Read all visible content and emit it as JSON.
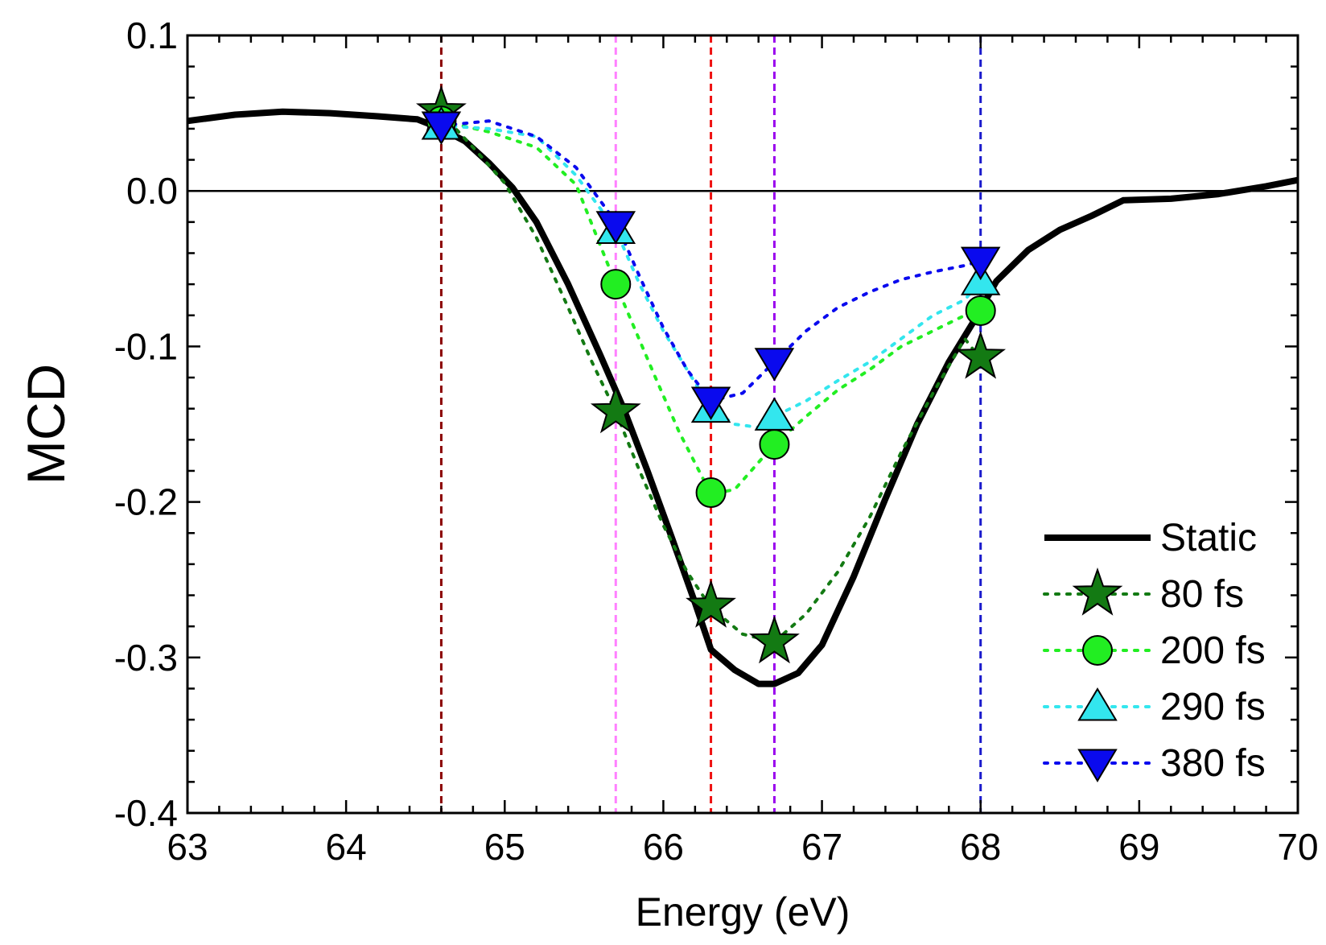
{
  "chart_data": {
    "type": "line",
    "title": "",
    "xlabel": "Energy (eV)",
    "ylabel": "MCD",
    "xlim": [
      63,
      70
    ],
    "ylim": [
      -0.4,
      0.1
    ],
    "xticks": [
      63,
      64,
      65,
      66,
      67,
      68,
      69,
      70
    ],
    "xtick_labels": [
      "63",
      "64",
      "65",
      "66",
      "67",
      "68",
      "69",
      "70"
    ],
    "yticks": [
      -0.4,
      -0.3,
      -0.2,
      -0.1,
      0.0,
      0.1
    ],
    "ytick_labels": [
      "-0.4",
      "-0.3",
      "-0.2",
      "-0.1",
      "0.0",
      "0.1"
    ],
    "grid": false,
    "zero_line": 0.0,
    "legend_position": "bottom-right",
    "vertical_markers": [
      {
        "x": 64.6,
        "color": "#8b0000"
      },
      {
        "x": 65.7,
        "color": "#ff80ff"
      },
      {
        "x": 66.3,
        "color": "#ee1111"
      },
      {
        "x": 66.7,
        "color": "#9900ee"
      },
      {
        "x": 68.0,
        "color": "#1a1acc"
      }
    ],
    "series": [
      {
        "name": "Static",
        "style": "solid",
        "color": "#000000",
        "x": [
          63.0,
          63.3,
          63.6,
          63.9,
          64.2,
          64.45,
          64.6,
          64.75,
          64.9,
          65.05,
          65.2,
          65.4,
          65.6,
          65.75,
          65.9,
          66.05,
          66.2,
          66.3,
          66.45,
          66.6,
          66.7,
          66.85,
          67.0,
          67.2,
          67.4,
          67.6,
          67.8,
          67.95,
          68.1,
          68.3,
          68.5,
          68.7,
          68.9,
          69.2,
          69.5,
          69.8,
          70.0
        ],
        "y": [
          0.045,
          0.049,
          0.051,
          0.05,
          0.048,
          0.046,
          0.04,
          0.032,
          0.018,
          0.002,
          -0.02,
          -0.06,
          -0.105,
          -0.14,
          -0.18,
          -0.222,
          -0.265,
          -0.295,
          -0.308,
          -0.317,
          -0.317,
          -0.31,
          -0.292,
          -0.248,
          -0.198,
          -0.15,
          -0.11,
          -0.085,
          -0.058,
          -0.038,
          -0.025,
          -0.016,
          -0.006,
          -0.005,
          -0.002,
          0.003,
          0.007
        ]
      },
      {
        "name": "80 fs",
        "style": "dotted",
        "marker": "star",
        "color": "#137a13",
        "line_x": [
          64.6,
          64.8,
          65.0,
          65.2,
          65.4,
          65.55,
          65.7,
          65.85,
          66.0,
          66.15,
          66.3,
          66.5,
          66.7,
          66.9,
          67.1,
          67.3,
          67.5,
          67.7,
          67.9,
          68.0
        ],
        "line_y": [
          0.05,
          0.028,
          0.005,
          -0.03,
          -0.075,
          -0.11,
          -0.142,
          -0.18,
          -0.215,
          -0.245,
          -0.268,
          -0.285,
          -0.29,
          -0.272,
          -0.245,
          -0.21,
          -0.168,
          -0.13,
          -0.095,
          -0.108
        ],
        "x": [
          64.6,
          65.7,
          66.3,
          66.7,
          68.0
        ],
        "y": [
          0.051,
          -0.142,
          -0.267,
          -0.29,
          -0.107
        ]
      },
      {
        "name": "200 fs",
        "style": "dotted",
        "marker": "circle",
        "color": "#22ee22",
        "line_x": [
          64.6,
          64.9,
          65.2,
          65.45,
          65.7,
          65.95,
          66.1,
          66.3,
          66.45,
          66.7,
          66.9,
          67.1,
          67.3,
          67.5,
          67.7,
          67.9,
          68.0
        ],
        "line_y": [
          0.045,
          0.038,
          0.028,
          0.004,
          -0.06,
          -0.12,
          -0.155,
          -0.195,
          -0.192,
          -0.163,
          -0.145,
          -0.128,
          -0.115,
          -0.1,
          -0.09,
          -0.08,
          -0.077
        ],
        "x": [
          64.6,
          65.7,
          66.3,
          66.7,
          68.0
        ],
        "y": [
          0.045,
          -0.06,
          -0.194,
          -0.163,
          -0.077
        ]
      },
      {
        "name": "290 fs",
        "style": "dotted",
        "marker": "triangle-up",
        "color": "#33e6ee",
        "line_x": [
          64.6,
          64.9,
          65.2,
          65.45,
          65.7,
          65.85,
          66.0,
          66.15,
          66.3,
          66.45,
          66.6,
          66.7,
          66.9,
          67.1,
          67.3,
          67.5,
          67.7,
          67.9,
          68.0
        ],
        "line_y": [
          0.042,
          0.04,
          0.035,
          0.01,
          -0.025,
          -0.06,
          -0.09,
          -0.115,
          -0.14,
          -0.15,
          -0.152,
          -0.145,
          -0.135,
          -0.122,
          -0.11,
          -0.095,
          -0.08,
          -0.07,
          -0.058
        ],
        "x": [
          64.6,
          65.7,
          66.3,
          66.7,
          68.0
        ],
        "y": [
          0.042,
          -0.025,
          -0.14,
          -0.145,
          -0.058
        ]
      },
      {
        "name": "380 fs",
        "style": "dotted",
        "marker": "triangle-down",
        "color": "#0a0aee",
        "line_x": [
          64.6,
          64.9,
          65.2,
          65.45,
          65.7,
          65.85,
          66.0,
          66.15,
          66.3,
          66.5,
          66.7,
          66.9,
          67.1,
          67.3,
          67.5,
          67.7,
          67.9,
          68.0
        ],
        "line_y": [
          0.042,
          0.045,
          0.035,
          0.015,
          -0.02,
          -0.055,
          -0.088,
          -0.115,
          -0.135,
          -0.13,
          -0.11,
          -0.09,
          -0.075,
          -0.065,
          -0.057,
          -0.052,
          -0.048,
          -0.045
        ],
        "x": [
          64.6,
          65.7,
          66.3,
          66.7,
          68.0
        ],
        "y": [
          0.042,
          -0.022,
          -0.135,
          -0.11,
          -0.045
        ]
      }
    ]
  }
}
